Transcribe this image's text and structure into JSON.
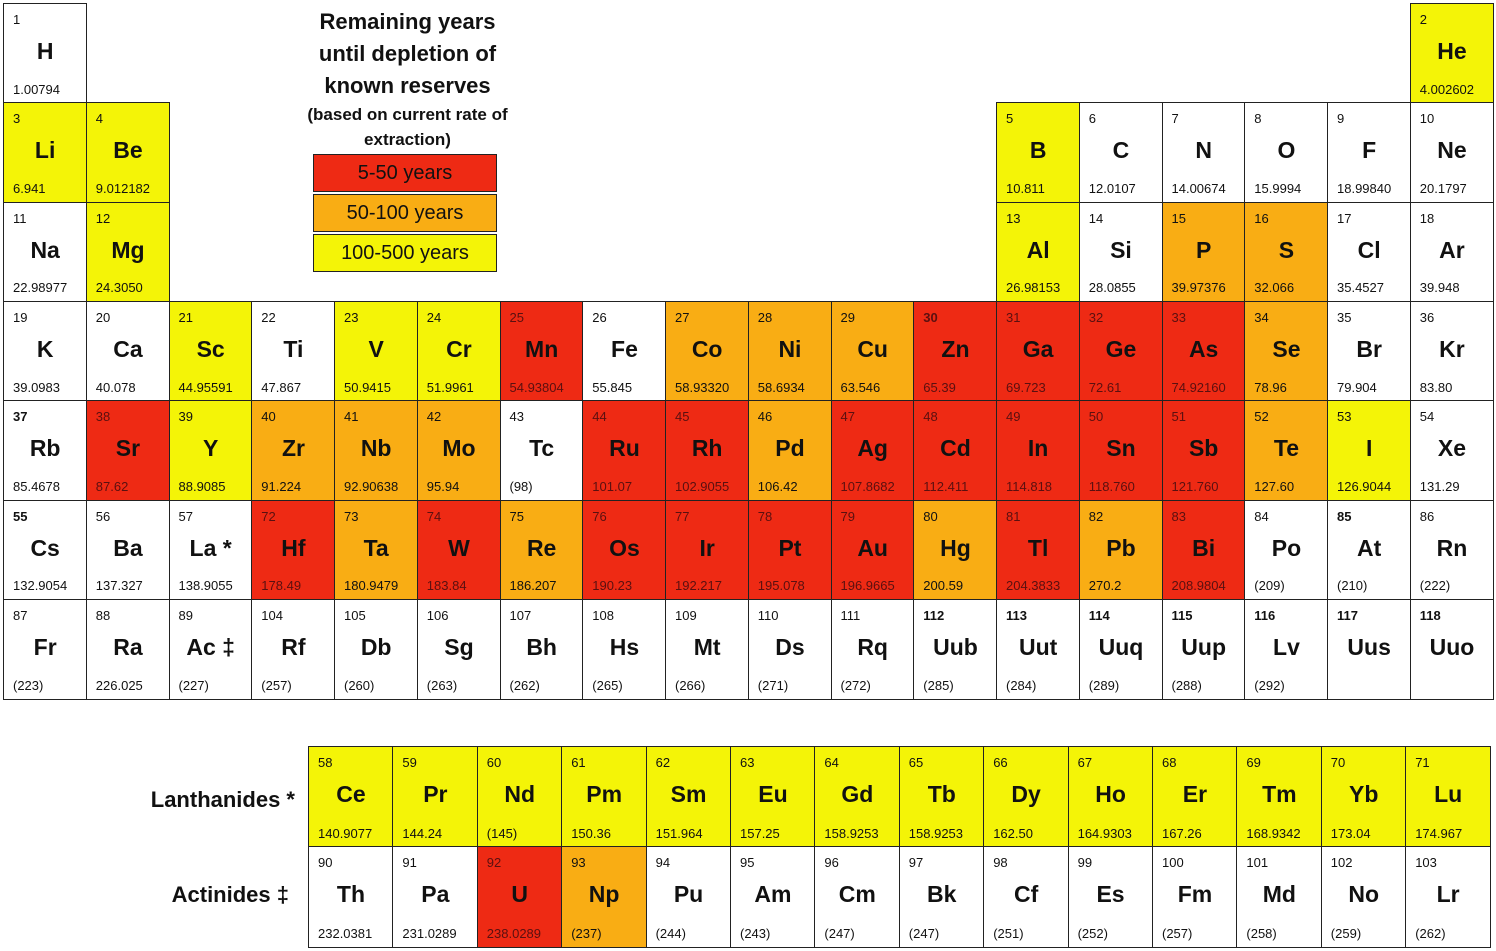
{
  "title": {
    "lines": [
      "Remaining years",
      "until depletion of",
      "known reserves"
    ],
    "subtitle_lines": [
      "(based on current rate of",
      "extraction)"
    ]
  },
  "legend": [
    {
      "key": "red",
      "label": "5-50 years",
      "color": "#ee2a14"
    },
    {
      "key": "orange",
      "label": "50-100 years",
      "color": "#f9ad14"
    },
    {
      "key": "yellow",
      "label": "100-500 years",
      "color": "#f4f407"
    }
  ],
  "colors": {
    "white": "#ffffff",
    "border": "#222222"
  },
  "series_labels": {
    "lanthanides": "Lanthanides *",
    "actinides": "Actinides ‡"
  },
  "elements": [
    {
      "num": "1",
      "sym": "H",
      "mass": "1.00794",
      "period": 1,
      "group": 1,
      "cat": "white"
    },
    {
      "num": "2",
      "sym": "He",
      "mass": "4.002602",
      "period": 1,
      "group": 18,
      "cat": "yellow"
    },
    {
      "num": "3",
      "sym": "Li",
      "mass": "6.941",
      "period": 2,
      "group": 1,
      "cat": "yellow"
    },
    {
      "num": "4",
      "sym": "Be",
      "mass": "9.012182",
      "period": 2,
      "group": 2,
      "cat": "yellow"
    },
    {
      "num": "5",
      "sym": "B",
      "mass": "10.811",
      "period": 2,
      "group": 13,
      "cat": "yellow"
    },
    {
      "num": "6",
      "sym": "C",
      "mass": "12.0107",
      "period": 2,
      "group": 14,
      "cat": "white"
    },
    {
      "num": "7",
      "sym": "N",
      "mass": "14.00674",
      "period": 2,
      "group": 15,
      "cat": "white"
    },
    {
      "num": "8",
      "sym": "O",
      "mass": "15.9994",
      "period": 2,
      "group": 16,
      "cat": "white"
    },
    {
      "num": "9",
      "sym": "F",
      "mass": "18.99840",
      "period": 2,
      "group": 17,
      "cat": "white"
    },
    {
      "num": "10",
      "sym": "Ne",
      "mass": "20.1797",
      "period": 2,
      "group": 18,
      "cat": "white"
    },
    {
      "num": "11",
      "sym": "Na",
      "mass": "22.98977",
      "period": 3,
      "group": 1,
      "cat": "white"
    },
    {
      "num": "12",
      "sym": "Mg",
      "mass": "24.3050",
      "period": 3,
      "group": 2,
      "cat": "yellow"
    },
    {
      "num": "13",
      "sym": "Al",
      "mass": "26.98153",
      "period": 3,
      "group": 13,
      "cat": "yellow"
    },
    {
      "num": "14",
      "sym": "Si",
      "mass": "28.0855",
      "period": 3,
      "group": 14,
      "cat": "white"
    },
    {
      "num": "15",
      "sym": "P",
      "mass": "39.97376",
      "period": 3,
      "group": 15,
      "cat": "orange"
    },
    {
      "num": "16",
      "sym": "S",
      "mass": "32.066",
      "period": 3,
      "group": 16,
      "cat": "orange"
    },
    {
      "num": "17",
      "sym": "Cl",
      "mass": "35.4527",
      "period": 3,
      "group": 17,
      "cat": "white"
    },
    {
      "num": "18",
      "sym": "Ar",
      "mass": "39.948",
      "period": 3,
      "group": 18,
      "cat": "white"
    },
    {
      "num": "19",
      "sym": "K",
      "mass": "39.0983",
      "period": 4,
      "group": 1,
      "cat": "white"
    },
    {
      "num": "20",
      "sym": "Ca",
      "mass": "40.078",
      "period": 4,
      "group": 2,
      "cat": "white"
    },
    {
      "num": "21",
      "sym": "Sc",
      "mass": "44.95591",
      "period": 4,
      "group": 3,
      "cat": "yellow"
    },
    {
      "num": "22",
      "sym": "Ti",
      "mass": "47.867",
      "period": 4,
      "group": 4,
      "cat": "white"
    },
    {
      "num": "23",
      "sym": "V",
      "mass": "50.9415",
      "period": 4,
      "group": 5,
      "cat": "yellow"
    },
    {
      "num": "24",
      "sym": "Cr",
      "mass": "51.9961",
      "period": 4,
      "group": 6,
      "cat": "yellow"
    },
    {
      "num": "25",
      "sym": "Mn",
      "mass": "54.93804",
      "period": 4,
      "group": 7,
      "cat": "red"
    },
    {
      "num": "26",
      "sym": "Fe",
      "mass": "55.845",
      "period": 4,
      "group": 8,
      "cat": "white"
    },
    {
      "num": "27",
      "sym": "Co",
      "mass": "58.93320",
      "period": 4,
      "group": 9,
      "cat": "orange"
    },
    {
      "num": "28",
      "sym": "Ni",
      "mass": "58.6934",
      "period": 4,
      "group": 10,
      "cat": "orange"
    },
    {
      "num": "29",
      "sym": "Cu",
      "mass": "63.546",
      "period": 4,
      "group": 11,
      "cat": "orange"
    },
    {
      "num": "30",
      "sym": "Zn",
      "mass": "65.39",
      "period": 4,
      "group": 12,
      "cat": "red",
      "boldnum": true
    },
    {
      "num": "31",
      "sym": "Ga",
      "mass": "69.723",
      "period": 4,
      "group": 13,
      "cat": "red"
    },
    {
      "num": "32",
      "sym": "Ge",
      "mass": "72.61",
      "period": 4,
      "group": 14,
      "cat": "red"
    },
    {
      "num": "33",
      "sym": "As",
      "mass": "74.92160",
      "period": 4,
      "group": 15,
      "cat": "red"
    },
    {
      "num": "34",
      "sym": "Se",
      "mass": "78.96",
      "period": 4,
      "group": 16,
      "cat": "orange"
    },
    {
      "num": "35",
      "sym": "Br",
      "mass": "79.904",
      "period": 4,
      "group": 17,
      "cat": "white"
    },
    {
      "num": "36",
      "sym": "Kr",
      "mass": "83.80",
      "period": 4,
      "group": 18,
      "cat": "white"
    },
    {
      "num": "37",
      "sym": "Rb",
      "mass": "85.4678",
      "period": 5,
      "group": 1,
      "cat": "white",
      "boldnum": true
    },
    {
      "num": "38",
      "sym": "Sr",
      "mass": "87.62",
      "period": 5,
      "group": 2,
      "cat": "red"
    },
    {
      "num": "39",
      "sym": "Y",
      "mass": "88.9085",
      "period": 5,
      "group": 3,
      "cat": "yellow"
    },
    {
      "num": "40",
      "sym": "Zr",
      "mass": "91.224",
      "period": 5,
      "group": 4,
      "cat": "orange"
    },
    {
      "num": "41",
      "sym": "Nb",
      "mass": "92.90638",
      "period": 5,
      "group": 5,
      "cat": "orange"
    },
    {
      "num": "42",
      "sym": "Mo",
      "mass": "95.94",
      "period": 5,
      "group": 6,
      "cat": "orange"
    },
    {
      "num": "43",
      "sym": "Tc",
      "mass": "(98)",
      "period": 5,
      "group": 7,
      "cat": "white"
    },
    {
      "num": "44",
      "sym": "Ru",
      "mass": "101.07",
      "period": 5,
      "group": 8,
      "cat": "red"
    },
    {
      "num": "45",
      "sym": "Rh",
      "mass": "102.9055",
      "period": 5,
      "group": 9,
      "cat": "red"
    },
    {
      "num": "46",
      "sym": "Pd",
      "mass": "106.42",
      "period": 5,
      "group": 10,
      "cat": "orange"
    },
    {
      "num": "47",
      "sym": "Ag",
      "mass": "107.8682",
      "period": 5,
      "group": 11,
      "cat": "red"
    },
    {
      "num": "48",
      "sym": "Cd",
      "mass": "112.411",
      "period": 5,
      "group": 12,
      "cat": "red"
    },
    {
      "num": "49",
      "sym": "In",
      "mass": "114.818",
      "period": 5,
      "group": 13,
      "cat": "red"
    },
    {
      "num": "50",
      "sym": "Sn",
      "mass": "118.760",
      "period": 5,
      "group": 14,
      "cat": "red"
    },
    {
      "num": "51",
      "sym": "Sb",
      "mass": "121.760",
      "period": 5,
      "group": 15,
      "cat": "red"
    },
    {
      "num": "52",
      "sym": "Te",
      "mass": "127.60",
      "period": 5,
      "group": 16,
      "cat": "orange"
    },
    {
      "num": "53",
      "sym": "I",
      "mass": "126.9044",
      "period": 5,
      "group": 17,
      "cat": "yellow"
    },
    {
      "num": "54",
      "sym": "Xe",
      "mass": "131.29",
      "period": 5,
      "group": 18,
      "cat": "white"
    },
    {
      "num": "55",
      "sym": "Cs",
      "mass": "132.9054",
      "period": 6,
      "group": 1,
      "cat": "white",
      "boldnum": true
    },
    {
      "num": "56",
      "sym": "Ba",
      "mass": "137.327",
      "period": 6,
      "group": 2,
      "cat": "white"
    },
    {
      "num": "57",
      "sym": "La *",
      "mass": "138.9055",
      "period": 6,
      "group": 3,
      "cat": "white"
    },
    {
      "num": "72",
      "sym": "Hf",
      "mass": "178.49",
      "period": 6,
      "group": 4,
      "cat": "red"
    },
    {
      "num": "73",
      "sym": "Ta",
      "mass": "180.9479",
      "period": 6,
      "group": 5,
      "cat": "orange"
    },
    {
      "num": "74",
      "sym": "W",
      "mass": "183.84",
      "period": 6,
      "group": 6,
      "cat": "red"
    },
    {
      "num": "75",
      "sym": "Re",
      "mass": "186.207",
      "period": 6,
      "group": 7,
      "cat": "orange"
    },
    {
      "num": "76",
      "sym": "Os",
      "mass": "190.23",
      "period": 6,
      "group": 8,
      "cat": "red"
    },
    {
      "num": "77",
      "sym": "Ir",
      "mass": "192.217",
      "period": 6,
      "group": 9,
      "cat": "red"
    },
    {
      "num": "78",
      "sym": "Pt",
      "mass": "195.078",
      "period": 6,
      "group": 10,
      "cat": "red"
    },
    {
      "num": "79",
      "sym": "Au",
      "mass": "196.9665",
      "period": 6,
      "group": 11,
      "cat": "red"
    },
    {
      "num": "80",
      "sym": "Hg",
      "mass": "200.59",
      "period": 6,
      "group": 12,
      "cat": "orange"
    },
    {
      "num": "81",
      "sym": "Tl",
      "mass": "204.3833",
      "period": 6,
      "group": 13,
      "cat": "red"
    },
    {
      "num": "82",
      "sym": "Pb",
      "mass": "270.2",
      "period": 6,
      "group": 14,
      "cat": "orange"
    },
    {
      "num": "83",
      "sym": "Bi",
      "mass": "208.9804",
      "period": 6,
      "group": 15,
      "cat": "red"
    },
    {
      "num": "84",
      "sym": "Po",
      "mass": "(209)",
      "period": 6,
      "group": 16,
      "cat": "white"
    },
    {
      "num": "85",
      "sym": "At",
      "mass": "(210)",
      "period": 6,
      "group": 17,
      "cat": "white",
      "boldnum": true
    },
    {
      "num": "86",
      "sym": "Rn",
      "mass": "(222)",
      "period": 6,
      "group": 18,
      "cat": "white"
    },
    {
      "num": "87",
      "sym": "Fr",
      "mass": "(223)",
      "period": 7,
      "group": 1,
      "cat": "white"
    },
    {
      "num": "88",
      "sym": "Ra",
      "mass": "226.025",
      "period": 7,
      "group": 2,
      "cat": "white"
    },
    {
      "num": "89",
      "sym": "Ac ‡",
      "mass": "(227)",
      "period": 7,
      "group": 3,
      "cat": "white"
    },
    {
      "num": "104",
      "sym": "Rf",
      "mass": "(257)",
      "period": 7,
      "group": 4,
      "cat": "white"
    },
    {
      "num": "105",
      "sym": "Db",
      "mass": "(260)",
      "period": 7,
      "group": 5,
      "cat": "white"
    },
    {
      "num": "106",
      "sym": "Sg",
      "mass": "(263)",
      "period": 7,
      "group": 6,
      "cat": "white"
    },
    {
      "num": "107",
      "sym": "Bh",
      "mass": "(262)",
      "period": 7,
      "group": 7,
      "cat": "white"
    },
    {
      "num": "108",
      "sym": "Hs",
      "mass": "(265)",
      "period": 7,
      "group": 8,
      "cat": "white"
    },
    {
      "num": "109",
      "sym": "Mt",
      "mass": "(266)",
      "period": 7,
      "group": 9,
      "cat": "white"
    },
    {
      "num": "110",
      "sym": "Ds",
      "mass": "(271)",
      "period": 7,
      "group": 10,
      "cat": "white"
    },
    {
      "num": "111",
      "sym": "Rq",
      "mass": "(272)",
      "period": 7,
      "group": 11,
      "cat": "white"
    },
    {
      "num": "112",
      "sym": "Uub",
      "mass": "(285)",
      "period": 7,
      "group": 12,
      "cat": "white",
      "boldnum": true
    },
    {
      "num": "113",
      "sym": "Uut",
      "mass": "(284)",
      "period": 7,
      "group": 13,
      "cat": "white",
      "boldnum": true
    },
    {
      "num": "114",
      "sym": "Uuq",
      "mass": "(289)",
      "period": 7,
      "group": 14,
      "cat": "white",
      "boldnum": true
    },
    {
      "num": "115",
      "sym": "Uup",
      "mass": "(288)",
      "period": 7,
      "group": 15,
      "cat": "white",
      "boldnum": true
    },
    {
      "num": "116",
      "sym": "Lv",
      "mass": "(292)",
      "period": 7,
      "group": 16,
      "cat": "white",
      "boldnum": true
    },
    {
      "num": "117",
      "sym": "Uus",
      "mass": "",
      "period": 7,
      "group": 17,
      "cat": "white",
      "boldnum": true
    },
    {
      "num": "118",
      "sym": "Uuo",
      "mass": "",
      "period": 7,
      "group": 18,
      "cat": "white",
      "boldnum": true
    }
  ],
  "lanthanides": [
    {
      "num": "58",
      "sym": "Ce",
      "mass": "140.9077",
      "cat": "yellow"
    },
    {
      "num": "59",
      "sym": "Pr",
      "mass": "144.24",
      "cat": "yellow"
    },
    {
      "num": "60",
      "sym": "Nd",
      "mass": "(145)",
      "cat": "yellow"
    },
    {
      "num": "61",
      "sym": "Pm",
      "mass": "150.36",
      "cat": "yellow"
    },
    {
      "num": "62",
      "sym": "Sm",
      "mass": "151.964",
      "cat": "yellow"
    },
    {
      "num": "63",
      "sym": "Eu",
      "mass": "157.25",
      "cat": "yellow"
    },
    {
      "num": "64",
      "sym": "Gd",
      "mass": "158.9253",
      "cat": "yellow"
    },
    {
      "num": "65",
      "sym": "Tb",
      "mass": "158.9253",
      "cat": "yellow"
    },
    {
      "num": "66",
      "sym": "Dy",
      "mass": "162.50",
      "cat": "yellow"
    },
    {
      "num": "67",
      "sym": "Ho",
      "mass": "164.9303",
      "cat": "yellow"
    },
    {
      "num": "68",
      "sym": "Er",
      "mass": "167.26",
      "cat": "yellow"
    },
    {
      "num": "69",
      "sym": "Tm",
      "mass": "168.9342",
      "cat": "yellow"
    },
    {
      "num": "70",
      "sym": "Yb",
      "mass": "173.04",
      "cat": "yellow"
    },
    {
      "num": "71",
      "sym": "Lu",
      "mass": "174.967",
      "cat": "yellow"
    }
  ],
  "actinides": [
    {
      "num": "90",
      "sym": "Th",
      "mass": "232.0381",
      "cat": "white"
    },
    {
      "num": "91",
      "sym": "Pa",
      "mass": "231.0289",
      "cat": "white"
    },
    {
      "num": "92",
      "sym": "U",
      "mass": "238.0289",
      "cat": "red"
    },
    {
      "num": "93",
      "sym": "Np",
      "mass": "(237)",
      "cat": "orange"
    },
    {
      "num": "94",
      "sym": "Pu",
      "mass": "(244)",
      "cat": "white"
    },
    {
      "num": "95",
      "sym": "Am",
      "mass": "(243)",
      "cat": "white"
    },
    {
      "num": "96",
      "sym": "Cm",
      "mass": "(247)",
      "cat": "white"
    },
    {
      "num": "97",
      "sym": "Bk",
      "mass": "(247)",
      "cat": "white"
    },
    {
      "num": "98",
      "sym": "Cf",
      "mass": "(251)",
      "cat": "white"
    },
    {
      "num": "99",
      "sym": "Es",
      "mass": "(252)",
      "cat": "white"
    },
    {
      "num": "100",
      "sym": "Fm",
      "mass": "(257)",
      "cat": "white"
    },
    {
      "num": "101",
      "sym": "Md",
      "mass": "(258)",
      "cat": "white"
    },
    {
      "num": "102",
      "sym": "No",
      "mass": "(259)",
      "cat": "white"
    },
    {
      "num": "103",
      "sym": "Lr",
      "mass": "(262)",
      "cat": "white"
    }
  ]
}
